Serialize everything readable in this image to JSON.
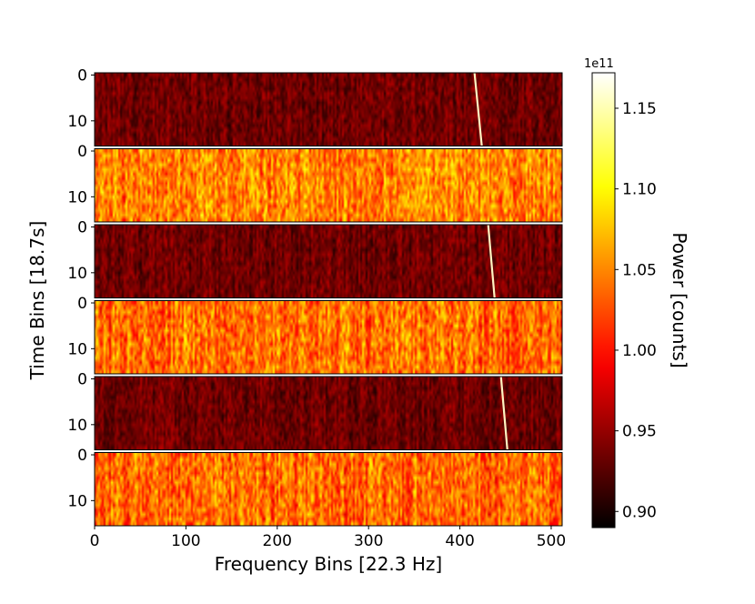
{
  "chart_data": {
    "type": "heatmap",
    "xlabel": "Frequency Bins [22.3 Hz]",
    "ylabel": "Time Bins [18.7s]",
    "x_range": [
      0,
      512
    ],
    "x_ticks": [
      "0",
      "100",
      "200",
      "300",
      "400",
      "500"
    ],
    "panel_y_range": [
      0,
      16
    ],
    "panel_y_ticks": [
      "0",
      "10"
    ],
    "colormap": "hot",
    "color_range": [
      89000000000.0,
      117200000000.0
    ],
    "colorbar": {
      "label": "Power [counts]",
      "offset_text": "1e11",
      "ticks": [
        "0.90",
        "0.95",
        "1.00",
        "1.05",
        "1.10",
        "1.15"
      ],
      "tick_values": [
        0.9,
        0.95,
        1.0,
        1.05,
        1.1,
        1.15
      ]
    },
    "panels": [
      {
        "mean_level": 0.935,
        "signal": {
          "x_start": 416,
          "x_end": 424
        }
      },
      {
        "mean_level": 1.05,
        "signal": null
      },
      {
        "mean_level": 0.935,
        "signal": {
          "x_start": 431,
          "x_end": 438
        }
      },
      {
        "mean_level": 1.04,
        "signal": null
      },
      {
        "mean_level": 0.935,
        "signal": {
          "x_start": 445,
          "x_end": 452
        }
      },
      {
        "mean_level": 1.04,
        "signal": null
      }
    ]
  }
}
